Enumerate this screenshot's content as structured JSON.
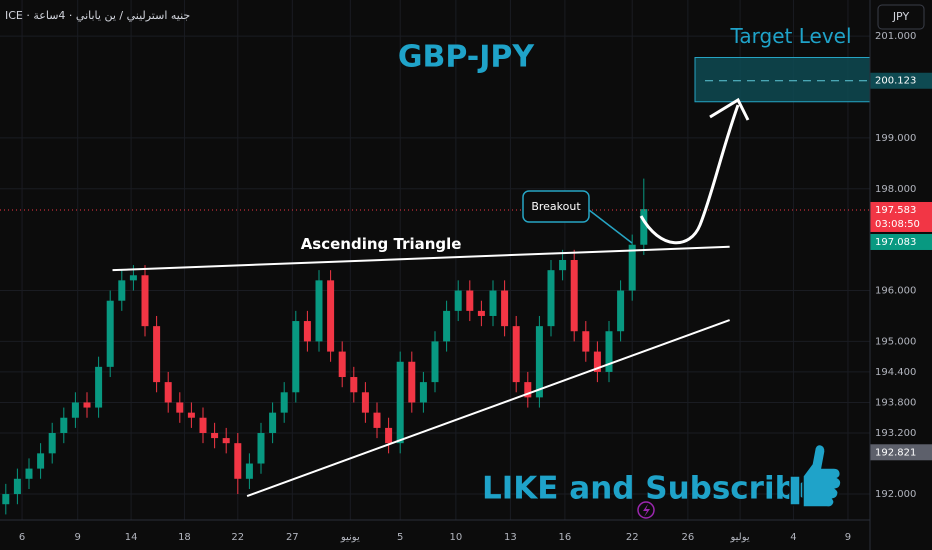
{
  "chart_data": {
    "type": "candlestick",
    "title": "GBP-JPY",
    "symbol": "ICE · جنيه استرليني / ين ياباني · 4ساعة",
    "currency": "JPY",
    "up_color": "#089981",
    "down_color": "#f23645",
    "grid": true,
    "xlim": [
      -0.5,
      74.5
    ],
    "ylim": [
      191.49,
      201.71
    ],
    "xticks": [
      {
        "value": 1.4,
        "label": "6"
      },
      {
        "value": 6.2,
        "label": "9"
      },
      {
        "value": 10.8,
        "label": "14"
      },
      {
        "value": 15.4,
        "label": "18"
      },
      {
        "value": 20,
        "label": "22"
      },
      {
        "value": 24.7,
        "label": "27"
      },
      {
        "value": 29.7,
        "label": "يونيو"
      },
      {
        "value": 34,
        "label": "5"
      },
      {
        "value": 38.8,
        "label": "10"
      },
      {
        "value": 43.5,
        "label": "13"
      },
      {
        "value": 48.2,
        "label": "16"
      },
      {
        "value": 54,
        "label": "22"
      },
      {
        "value": 58.8,
        "label": "26"
      },
      {
        "value": 63.3,
        "label": "يوليو"
      },
      {
        "value": 67.9,
        "label": "4"
      },
      {
        "value": 72.6,
        "label": "9"
      }
    ],
    "yticks": [
      {
        "value": 201,
        "label": "201.000"
      },
      {
        "value": 199,
        "label": "199.000"
      },
      {
        "value": 198,
        "label": "198.000"
      },
      {
        "value": 196,
        "label": "196.000"
      },
      {
        "value": 195,
        "label": "195.000"
      },
      {
        "value": 194.4,
        "label": "194.400"
      },
      {
        "value": 193.8,
        "label": "193.800"
      },
      {
        "value": 193.2,
        "label": "193.200"
      },
      {
        "value": 192,
        "label": "192.000"
      }
    ],
    "open": [
      191.8,
      192.0,
      192.3,
      192.5,
      192.8,
      193.2,
      193.5,
      193.8,
      193.7,
      194.5,
      195.8,
      196.2,
      196.3,
      195.3,
      194.2,
      193.8,
      193.6,
      193.5,
      193.2,
      193.1,
      193.0,
      192.3,
      192.6,
      193.2,
      193.6,
      194.0,
      195.4,
      195.0,
      196.2,
      194.8,
      194.3,
      194.0,
      193.6,
      193.3,
      193.0,
      194.6,
      193.8,
      194.2,
      195.0,
      195.6,
      196.0,
      195.6,
      195.5,
      196.0,
      195.3,
      194.2,
      193.9,
      195.3,
      196.4,
      196.6,
      195.2,
      194.8,
      194.4,
      195.2,
      196.0,
      196.9
    ],
    "high": [
      192.2,
      192.5,
      192.7,
      193.0,
      193.4,
      193.7,
      194.0,
      194.0,
      194.7,
      196.0,
      196.4,
      196.5,
      196.5,
      195.5,
      194.4,
      194.0,
      193.8,
      193.7,
      193.4,
      193.3,
      193.2,
      192.8,
      193.4,
      193.8,
      194.2,
      195.6,
      195.6,
      196.4,
      196.4,
      195.0,
      194.5,
      194.2,
      193.8,
      193.5,
      194.8,
      194.8,
      194.4,
      195.2,
      195.8,
      196.2,
      196.2,
      195.8,
      196.2,
      196.2,
      195.5,
      194.4,
      195.5,
      196.6,
      196.8,
      196.8,
      195.4,
      195.0,
      195.4,
      196.2,
      197.1,
      198.2
    ],
    "low": [
      191.6,
      191.8,
      192.1,
      192.3,
      192.6,
      193.0,
      193.3,
      193.5,
      193.5,
      194.3,
      195.6,
      196.0,
      195.1,
      194.0,
      193.6,
      193.4,
      193.3,
      193.0,
      192.9,
      192.8,
      192.0,
      192.1,
      192.4,
      193.0,
      193.4,
      193.8,
      194.8,
      194.8,
      194.6,
      194.1,
      193.8,
      193.4,
      193.1,
      192.8,
      192.8,
      193.6,
      193.6,
      194.0,
      194.8,
      195.4,
      195.4,
      195.3,
      195.3,
      195.1,
      194.0,
      193.7,
      193.7,
      195.1,
      196.2,
      195.0,
      194.6,
      194.2,
      194.2,
      195.0,
      195.8,
      196.7
    ],
    "close": [
      192.0,
      192.3,
      192.5,
      192.8,
      193.2,
      193.5,
      193.8,
      193.7,
      194.5,
      195.8,
      196.2,
      196.3,
      195.3,
      194.2,
      193.8,
      193.6,
      193.5,
      193.2,
      193.1,
      193.0,
      192.3,
      192.6,
      193.2,
      193.6,
      194.0,
      195.4,
      195.0,
      196.2,
      194.8,
      194.3,
      194.0,
      193.6,
      193.3,
      193.0,
      194.6,
      193.8,
      194.2,
      195.0,
      195.6,
      196.0,
      195.6,
      195.5,
      196.0,
      195.3,
      194.2,
      193.9,
      195.3,
      196.4,
      196.6,
      195.2,
      194.8,
      194.4,
      195.2,
      196.0,
      196.9,
      197.6
    ],
    "trendlines": [
      {
        "name": "Ascending Triangle",
        "x": [
          9.2,
          62.4
        ],
        "y": [
          196.4,
          196.86
        ]
      },
      {
        "x": [
          20.8,
          62.4
        ],
        "y": [
          191.96,
          195.42
        ]
      }
    ],
    "target_zone": {
      "label": "Target Level",
      "top": 200.58,
      "bottom": 199.71,
      "level": {
        "value": 200.123,
        "label": "200.123"
      }
    },
    "last_price": {
      "value": 197.583,
      "label": "197.583"
    },
    "countdown": "03:08:50",
    "bid_price": {
      "value": 197.083,
      "label": "197.083"
    },
    "low_marker": {
      "value": 192.821,
      "label": "192.821"
    },
    "annotations": {
      "breakout": "Breakout",
      "cta": "LIKE and Subscribe"
    }
  }
}
